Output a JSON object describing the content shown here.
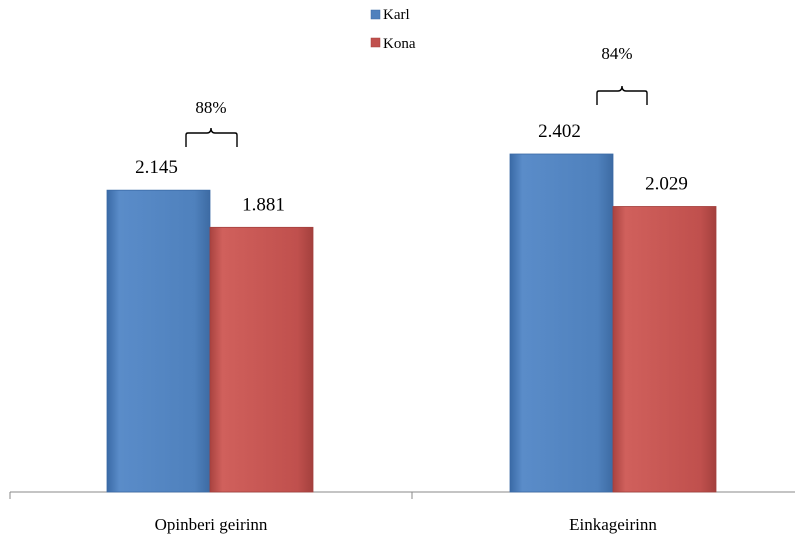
{
  "chart_data": {
    "type": "bar",
    "categories": [
      "Opinberi geirinn",
      "Einkageirinn"
    ],
    "series": [
      {
        "name": "Karl",
        "values": [
          2.145,
          2.402
        ],
        "labels": [
          "2.145",
          "2.402"
        ],
        "color": "#4f81bd"
      },
      {
        "name": "Kona",
        "values": [
          1.881,
          2.029
        ],
        "labels": [
          "1.881",
          "2.029"
        ],
        "color": "#c0504d"
      }
    ],
    "annotations": [
      "88%",
      "84%"
    ],
    "ylim": [
      0,
      2.5
    ],
    "grid": false,
    "legend": "top-center"
  }
}
